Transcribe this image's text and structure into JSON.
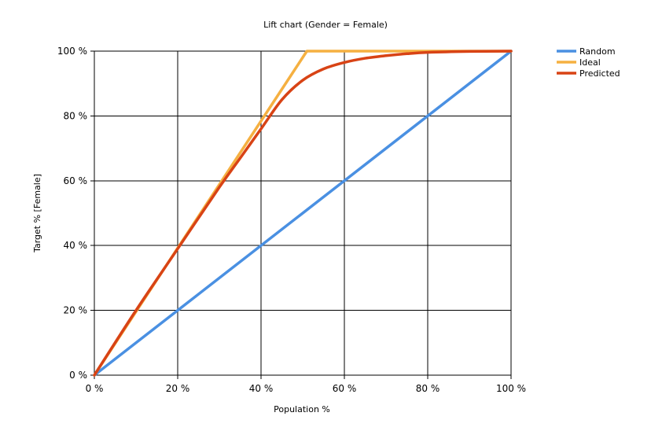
{
  "chart_data": {
    "type": "line",
    "title": "Lift chart (Gender = Female)",
    "xlabel": "Population %",
    "ylabel": "Target % [Female]",
    "xlim": [
      0,
      100
    ],
    "ylim": [
      0,
      100
    ],
    "x_ticks": [
      0,
      20,
      40,
      60,
      80,
      100
    ],
    "y_ticks": [
      0,
      20,
      40,
      60,
      80,
      100
    ],
    "x_tick_labels": [
      "0 %",
      "20 %",
      "40 %",
      "60 %",
      "80 %",
      "100 %"
    ],
    "y_tick_labels": [
      "0 %",
      "20 %",
      "40 %",
      "60 %",
      "80 %",
      "100 %"
    ],
    "grid": true,
    "legend_position": "top-right",
    "series": [
      {
        "name": "Random",
        "color": "#4a90e2",
        "points": [
          [
            0,
            0
          ],
          [
            100,
            100
          ]
        ]
      },
      {
        "name": "Ideal",
        "color": "#f5b041",
        "points": [
          [
            0,
            0
          ],
          [
            51,
            100
          ],
          [
            100,
            100
          ]
        ]
      },
      {
        "name": "Predicted",
        "color": "#d84315",
        "points": [
          [
            0,
            0
          ],
          [
            10,
            20
          ],
          [
            20,
            39
          ],
          [
            30,
            58
          ],
          [
            35,
            67
          ],
          [
            40,
            76
          ],
          [
            45,
            85
          ],
          [
            50,
            91
          ],
          [
            55,
            94.5
          ],
          [
            60,
            96.5
          ],
          [
            65,
            97.8
          ],
          [
            70,
            98.6
          ],
          [
            75,
            99.2
          ],
          [
            80,
            99.6
          ],
          [
            90,
            99.9
          ],
          [
            100,
            100
          ]
        ]
      }
    ]
  }
}
